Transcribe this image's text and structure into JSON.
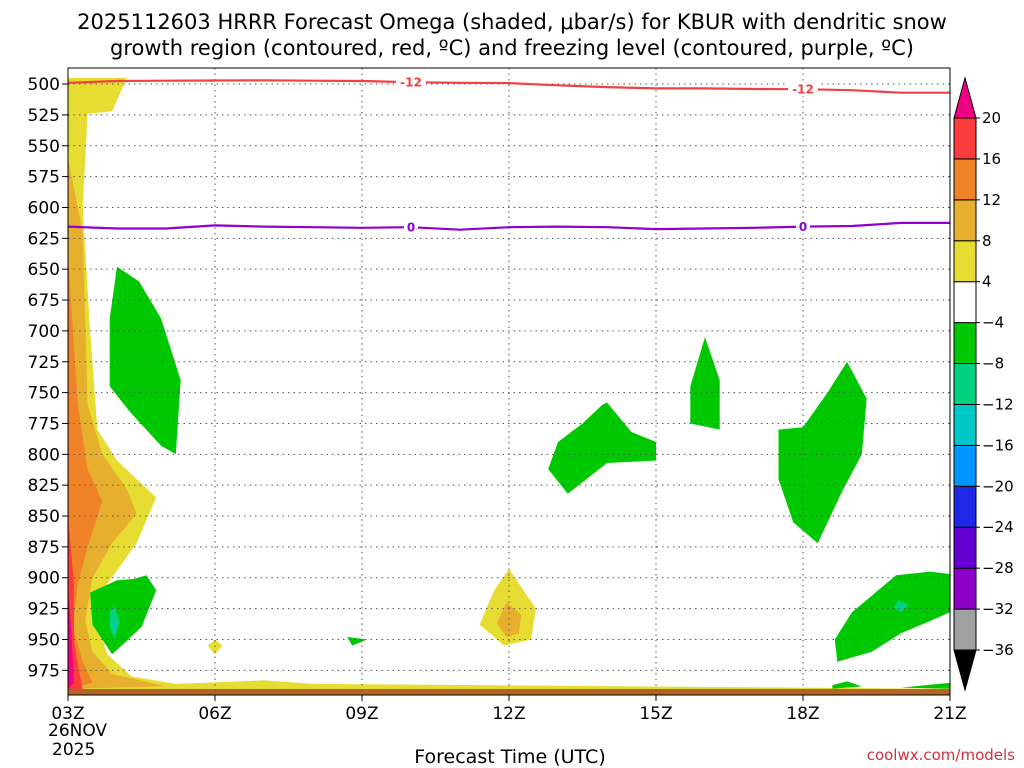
{
  "chart_data": {
    "type": "heatmap",
    "title_line1": "2025112603 HRRR Forecast Omega (shaded, μbar/s) for KBUR with dendritic snow",
    "title_line2": "growth region (contoured, red, ºC) and freezing level (contoured, purple, ºC)",
    "xlabel": "Forecast Time (UTC)",
    "credit": "coolwx.com/models",
    "x_ticks": [
      "03Z",
      "06Z",
      "09Z",
      "12Z",
      "15Z",
      "18Z",
      "21Z"
    ],
    "x_hours": [
      3,
      6,
      9,
      12,
      15,
      18,
      21
    ],
    "x_date_line1": "26NOV",
    "x_date_line2": "2025",
    "y_ticks": [
      500,
      525,
      550,
      575,
      600,
      625,
      650,
      675,
      700,
      725,
      750,
      775,
      800,
      825,
      850,
      875,
      900,
      925,
      950,
      975
    ],
    "y_range": [
      487,
      995
    ],
    "x_range": [
      3,
      21
    ],
    "grid": true,
    "colorbar": {
      "placement": "right",
      "levels": [
        -36,
        -32,
        -28,
        -24,
        -20,
        -16,
        -12,
        -8,
        -4,
        4,
        8,
        12,
        16,
        20
      ],
      "tick_labels": [
        "20",
        "16",
        "12",
        "8",
        "4",
        "−4",
        "−8",
        "−12",
        "−16",
        "−20",
        "−24",
        "−28",
        "−32",
        "−36"
      ],
      "colors": [
        "#000000",
        "#a0a0a0",
        "#8c00c8",
        "#6400d2",
        "#1e28e6",
        "#0096ff",
        "#00c8c8",
        "#00d282",
        "#00c800",
        "#ffffff",
        "#e6dc32",
        "#e6af2d",
        "#f08228",
        "#fa3c3c",
        "#f00082"
      ]
    },
    "contours": [
      {
        "label": "-12",
        "color": "#f04040",
        "points": [
          [
            3.0,
            499
          ],
          [
            4.0,
            497.5
          ],
          [
            5.0,
            497.3
          ],
          [
            6.0,
            497.1
          ],
          [
            7.0,
            497.0
          ],
          [
            8.0,
            497.3
          ],
          [
            9.0,
            497.5
          ],
          [
            10.0,
            498.5
          ],
          [
            11.0,
            499.0
          ],
          [
            12.0,
            499.2
          ],
          [
            13.0,
            501.0
          ],
          [
            14.0,
            502.5
          ],
          [
            15.0,
            503.5
          ],
          [
            16.0,
            503.5
          ],
          [
            17.0,
            504.0
          ],
          [
            18.0,
            504.2
          ],
          [
            19.0,
            505.0
          ],
          [
            20.0,
            507.0
          ],
          [
            21.0,
            507.0
          ]
        ],
        "label_hours": [
          10.0,
          18.0
        ]
      },
      {
        "label": "0",
        "color": "#9000d0",
        "points": [
          [
            3.0,
            615.5
          ],
          [
            4.0,
            617.0
          ],
          [
            5.0,
            617.0
          ],
          [
            6.0,
            614.5
          ],
          [
            7.0,
            615.5
          ],
          [
            8.0,
            616.0
          ],
          [
            9.0,
            616.5
          ],
          [
            10.0,
            616.0
          ],
          [
            11.0,
            618.0
          ],
          [
            12.0,
            616.0
          ],
          [
            13.0,
            615.5
          ],
          [
            14.0,
            616.0
          ],
          [
            15.0,
            617.5
          ],
          [
            16.0,
            617.0
          ],
          [
            17.0,
            616.5
          ],
          [
            18.0,
            615.5
          ],
          [
            19.0,
            615.0
          ],
          [
            20.0,
            612.5
          ],
          [
            21.0,
            612.5
          ]
        ],
        "label_hours": [
          10.0,
          18.0
        ]
      }
    ],
    "shaded_regions": [
      {
        "value": 4,
        "color": "#e6dc32",
        "points": [
          [
            3.2,
            495
          ],
          [
            3.8,
            495
          ],
          [
            4.2,
            495
          ],
          [
            3.9,
            522
          ],
          [
            3.4,
            524
          ],
          [
            3.3,
            600
          ],
          [
            3.45,
            700
          ],
          [
            3.6,
            780
          ],
          [
            4.0,
            805
          ],
          [
            4.8,
            835
          ],
          [
            4.4,
            872
          ],
          [
            3.8,
            905
          ],
          [
            3.6,
            935
          ],
          [
            3.8,
            962
          ],
          [
            4.3,
            980
          ],
          [
            5.2,
            986
          ],
          [
            6.5,
            984
          ],
          [
            7.0,
            983
          ],
          [
            8.0,
            986
          ],
          [
            21,
            990
          ],
          [
            21,
            995
          ],
          [
            3,
            995
          ],
          [
            3,
            495
          ]
        ]
      },
      {
        "value": 8,
        "color": "#e6af2d",
        "points": [
          [
            3,
            560
          ],
          [
            3.3,
            620
          ],
          [
            3.4,
            760
          ],
          [
            3.7,
            800
          ],
          [
            4.2,
            828
          ],
          [
            4.4,
            848
          ],
          [
            3.9,
            872
          ],
          [
            3.5,
            900
          ],
          [
            3.35,
            935
          ],
          [
            3.5,
            960
          ],
          [
            3.9,
            978
          ],
          [
            5.0,
            988
          ],
          [
            3,
            990
          ]
        ]
      },
      {
        "value": 12,
        "color": "#f08228",
        "points": [
          [
            3,
            640
          ],
          [
            3.2,
            760
          ],
          [
            3.4,
            812
          ],
          [
            3.7,
            838
          ],
          [
            3.4,
            875
          ],
          [
            3.2,
            905
          ],
          [
            3.1,
            940
          ],
          [
            3.3,
            968
          ],
          [
            3.5,
            985
          ],
          [
            3,
            990
          ]
        ]
      },
      {
        "value": 16,
        "color": "#fa3c3c",
        "points": [
          [
            3,
            850
          ],
          [
            3.12,
            905
          ],
          [
            3.12,
            950
          ],
          [
            3.22,
            975
          ],
          [
            3.3,
            990
          ],
          [
            3,
            992
          ]
        ]
      },
      {
        "value": 20,
        "color": "#f00082",
        "points": [
          [
            3,
            910
          ],
          [
            3.08,
            950
          ],
          [
            3.12,
            985
          ],
          [
            3,
            990
          ]
        ]
      },
      {
        "value": 4,
        "color": "#e6dc32",
        "points": [
          [
            12.0,
            893
          ],
          [
            12.55,
            925
          ],
          [
            12.45,
            950
          ],
          [
            11.9,
            955
          ],
          [
            11.4,
            938
          ],
          [
            11.7,
            910
          ]
        ]
      },
      {
        "value": 8,
        "color": "#e6af2d",
        "points": [
          [
            11.95,
            920
          ],
          [
            12.25,
            930
          ],
          [
            12.2,
            945
          ],
          [
            11.95,
            948
          ],
          [
            11.75,
            937
          ]
        ]
      },
      {
        "value": 4,
        "color": "#e6dc32",
        "points": [
          [
            6.0,
            950
          ],
          [
            6.15,
            955
          ],
          [
            6.0,
            962
          ],
          [
            5.85,
            955
          ]
        ]
      },
      {
        "value": -4,
        "color": "#00c800",
        "points": [
          [
            4.0,
            648
          ],
          [
            4.45,
            660
          ],
          [
            4.9,
            690
          ],
          [
            5.3,
            740
          ],
          [
            5.2,
            800
          ],
          [
            4.9,
            793
          ],
          [
            4.25,
            765
          ],
          [
            3.85,
            745
          ],
          [
            3.85,
            690
          ]
        ]
      },
      {
        "value": -4,
        "color": "#00c800",
        "points": [
          [
            13.0,
            790
          ],
          [
            13.5,
            775
          ],
          [
            13.9,
            760
          ],
          [
            14.0,
            758
          ],
          [
            14.5,
            782
          ],
          [
            15.0,
            790
          ],
          [
            15.0,
            805
          ],
          [
            14.0,
            807
          ],
          [
            13.2,
            832
          ],
          [
            12.8,
            812
          ]
        ]
      },
      {
        "value": -4,
        "color": "#00c800",
        "points": [
          [
            16.0,
            705
          ],
          [
            16.3,
            740
          ],
          [
            16.3,
            780
          ],
          [
            15.7,
            775
          ],
          [
            15.7,
            745
          ]
        ]
      },
      {
        "value": -4,
        "color": "#00c800",
        "points": [
          [
            18.9,
            725
          ],
          [
            19.3,
            755
          ],
          [
            19.2,
            800
          ],
          [
            18.8,
            830
          ],
          [
            18.3,
            872
          ],
          [
            17.8,
            855
          ],
          [
            17.5,
            820
          ],
          [
            17.5,
            780
          ],
          [
            18.0,
            778
          ],
          [
            18.5,
            750
          ]
        ]
      },
      {
        "value": -4,
        "color": "#00c800",
        "points": [
          [
            4.0,
            902
          ],
          [
            4.35,
            901
          ],
          [
            4.6,
            898
          ],
          [
            4.8,
            910
          ],
          [
            4.5,
            940
          ],
          [
            3.9,
            962
          ],
          [
            3.5,
            938
          ],
          [
            3.45,
            912
          ]
        ]
      },
      {
        "value": -8,
        "color": "#00d282",
        "points": [
          [
            3.95,
            923
          ],
          [
            4.05,
            935
          ],
          [
            3.95,
            950
          ],
          [
            3.85,
            940
          ],
          [
            3.85,
            928
          ]
        ]
      },
      {
        "value": -12,
        "color": "#00c8c8",
        "points": [
          [
            3.97,
            935
          ],
          [
            4.0,
            940
          ],
          [
            3.97,
            943
          ],
          [
            3.93,
            940
          ]
        ]
      },
      {
        "value": -4,
        "color": "#00c800",
        "points": [
          [
            19.9,
            898
          ],
          [
            20.6,
            895
          ],
          [
            21,
            897
          ],
          [
            21,
            928
          ],
          [
            20.6,
            935
          ],
          [
            20.0,
            945
          ],
          [
            19.4,
            960
          ],
          [
            18.7,
            968
          ],
          [
            18.65,
            950
          ],
          [
            19.0,
            928
          ]
        ]
      },
      {
        "value": -8,
        "color": "#00d282",
        "points": [
          [
            19.95,
            918
          ],
          [
            20.15,
            922
          ],
          [
            20.0,
            928
          ],
          [
            19.85,
            924
          ]
        ]
      },
      {
        "value": -4,
        "color": "#00c800",
        "points": [
          [
            8.7,
            948
          ],
          [
            9.1,
            950
          ],
          [
            8.8,
            955
          ]
        ]
      },
      {
        "value": -4,
        "color": "#00c800",
        "points": [
          [
            18.6,
            987
          ],
          [
            18.9,
            984
          ],
          [
            19.2,
            988
          ],
          [
            18.6,
            990
          ]
        ]
      },
      {
        "value": -4,
        "color": "#00c800",
        "points": [
          [
            20.0,
            989
          ],
          [
            21,
            985
          ],
          [
            21,
            990
          ]
        ]
      }
    ],
    "ground_band_color": "#b46428"
  }
}
